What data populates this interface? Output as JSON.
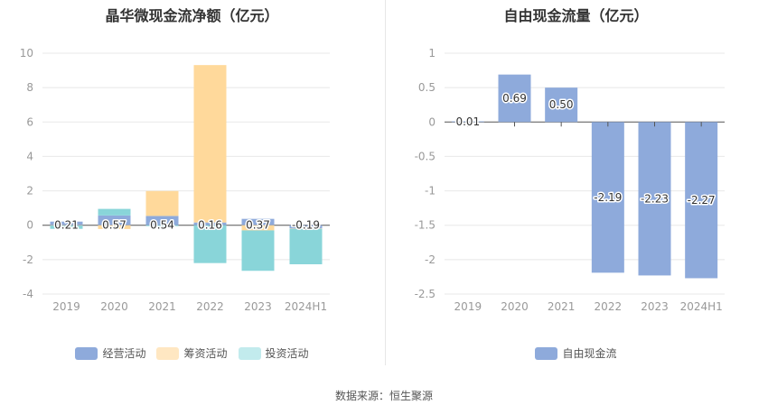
{
  "source_label": "数据来源：恒生聚源",
  "chart_data": [
    {
      "type": "bar",
      "stacked": true,
      "title": "晶华微现金流净额（亿元）",
      "categories": [
        "2019",
        "2020",
        "2021",
        "2022",
        "2023",
        "2024H1"
      ],
      "ylim": [
        -4,
        10
      ],
      "yticks": [
        -4,
        -2,
        0,
        2,
        4,
        6,
        8,
        10
      ],
      "grid": true,
      "legend_position": "bottom",
      "series": [
        {
          "name": "经营活动",
          "color": "#8eaadb",
          "values": [
            0.21,
            0.57,
            0.54,
            0.16,
            0.37,
            -0.19
          ]
        },
        {
          "name": "筹资活动",
          "color": "#ffd99b",
          "values": [
            -0.02,
            -0.22,
            1.45,
            9.15,
            -0.3,
            -0.02
          ]
        },
        {
          "name": "投资活动",
          "color": "#89d5d9",
          "values": [
            -0.19,
            0.38,
            -0.05,
            -2.2,
            -2.35,
            -2.06
          ]
        }
      ],
      "data_labels": [
        "0.21",
        "0.57",
        "0.54",
        "0.16",
        "0.37",
        "-0.19"
      ]
    },
    {
      "type": "bar",
      "title": "自由现金流量（亿元）",
      "categories": [
        "2019",
        "2020",
        "2021",
        "2022",
        "2023",
        "2024H1"
      ],
      "ylim": [
        -2.5,
        1
      ],
      "yticks": [
        -2.5,
        -2,
        -1.5,
        -1,
        -0.5,
        0,
        0.5,
        1
      ],
      "grid": true,
      "legend_position": "bottom",
      "series": [
        {
          "name": "自由现金流",
          "color": "#8eaadb",
          "values": [
            0.01,
            0.69,
            0.5,
            -2.19,
            -2.23,
            -2.27
          ]
        }
      ],
      "data_labels": [
        "0.01",
        "0.69",
        "0.50",
        "-2.19",
        "-2.23",
        "-2.27"
      ]
    }
  ]
}
